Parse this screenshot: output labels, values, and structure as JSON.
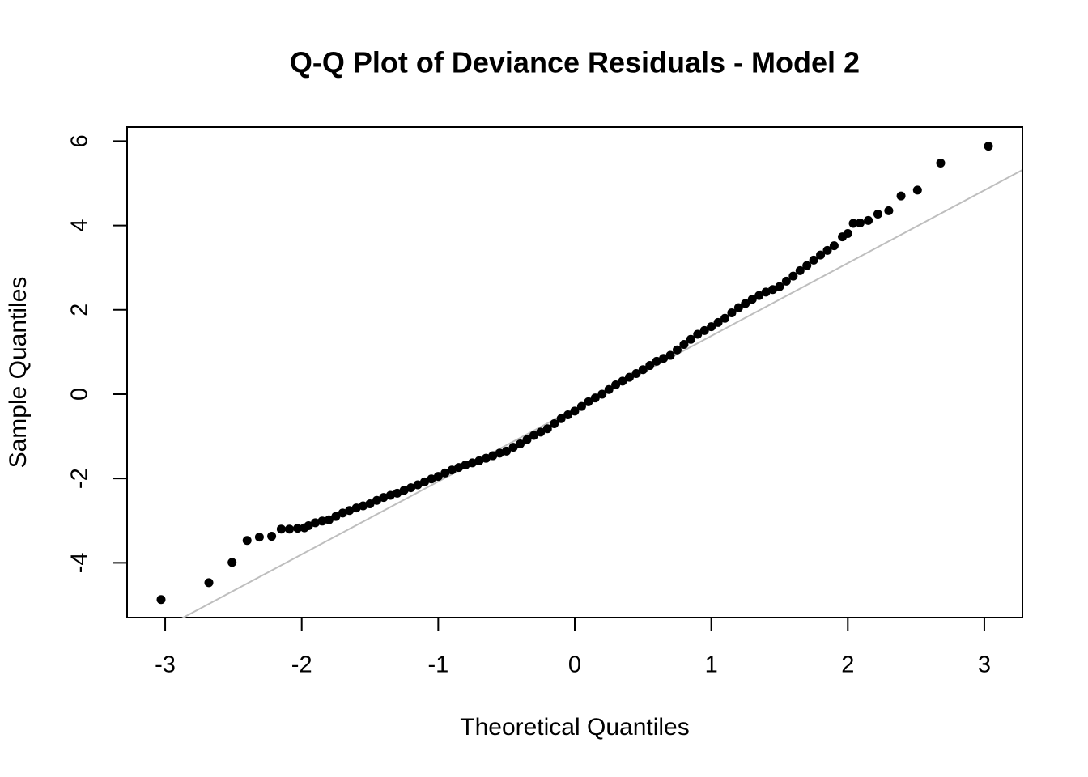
{
  "chart_data": {
    "type": "scatter",
    "title": "Q-Q Plot of Deviance Residuals - Model 2",
    "x_label": "Theoretical Quantiles",
    "y_label": "Sample Quantiles",
    "xlim": [
      -3.279,
      3.279
    ],
    "ylim": [
      -5.298,
      6.334
    ],
    "xticks": [
      -3,
      -2,
      -1,
      0,
      1,
      2,
      3
    ],
    "yticks": [
      -4,
      -2,
      0,
      2,
      4,
      6
    ],
    "color": "#000000",
    "reference_line": {
      "intercept": -0.346,
      "slope": 1.727,
      "color": "#bebebe"
    },
    "x": [
      -3.03,
      -2.68,
      -2.51,
      -2.4,
      -2.31,
      -2.22,
      -2.15,
      -2.09,
      -2.03,
      -1.98,
      -1.95,
      -1.9,
      -1.85,
      -1.8,
      -1.75,
      -1.7,
      -1.65,
      -1.6,
      -1.55,
      -1.5,
      -1.45,
      -1.4,
      -1.35,
      -1.3,
      -1.25,
      -1.2,
      -1.15,
      -1.1,
      -1.05,
      -1.0,
      -0.95,
      -0.9,
      -0.85,
      -0.8,
      -0.75,
      -0.7,
      -0.65,
      -0.6,
      -0.55,
      -0.5,
      -0.45,
      -0.4,
      -0.35,
      -0.3,
      -0.25,
      -0.2,
      -0.15,
      -0.1,
      -0.05,
      0,
      0.05,
      0.1,
      0.15,
      0.2,
      0.25,
      0.3,
      0.35,
      0.4,
      0.45,
      0.5,
      0.55,
      0.6,
      0.65,
      0.7,
      0.75,
      0.8,
      0.85,
      0.9,
      0.95,
      1.0,
      1.05,
      1.1,
      1.15,
      1.2,
      1.25,
      1.3,
      1.35,
      1.4,
      1.45,
      1.5,
      1.55,
      1.6,
      1.65,
      1.7,
      1.75,
      1.8,
      1.85,
      1.9,
      1.96,
      2.0,
      2.04,
      2.09,
      2.15,
      2.22,
      2.3,
      2.39,
      2.51,
      2.68,
      3.03
    ],
    "y": [
      -4.87,
      -4.47,
      -3.99,
      -3.47,
      -3.39,
      -3.37,
      -3.2,
      -3.2,
      -3.18,
      -3.17,
      -3.12,
      -3.05,
      -3.01,
      -2.98,
      -2.9,
      -2.82,
      -2.76,
      -2.7,
      -2.65,
      -2.6,
      -2.52,
      -2.45,
      -2.4,
      -2.35,
      -2.28,
      -2.22,
      -2.15,
      -2.08,
      -2.01,
      -1.95,
      -1.87,
      -1.8,
      -1.74,
      -1.68,
      -1.63,
      -1.58,
      -1.52,
      -1.46,
      -1.4,
      -1.35,
      -1.26,
      -1.18,
      -1.08,
      -0.98,
      -0.9,
      -0.82,
      -0.7,
      -0.58,
      -0.49,
      -0.4,
      -0.29,
      -0.18,
      -0.09,
      0.0,
      0.11,
      0.22,
      0.31,
      0.4,
      0.49,
      0.58,
      0.68,
      0.78,
      0.85,
      0.92,
      1.05,
      1.18,
      1.3,
      1.42,
      1.51,
      1.6,
      1.7,
      1.8,
      1.93,
      2.05,
      2.15,
      2.25,
      2.34,
      2.42,
      2.48,
      2.55,
      2.68,
      2.8,
      2.93,
      3.05,
      3.18,
      3.3,
      3.41,
      3.52,
      3.73,
      3.81,
      4.05,
      4.06,
      4.12,
      4.27,
      4.35,
      4.7,
      4.84,
      5.48,
      5.88
    ]
  }
}
